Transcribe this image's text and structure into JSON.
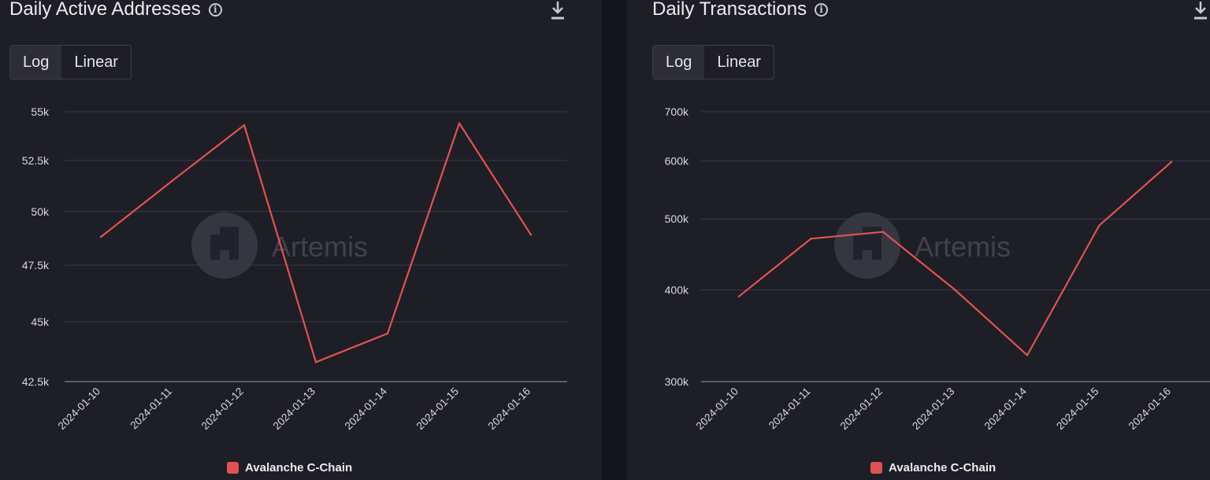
{
  "colors": {
    "series": "#e05252",
    "grid": "#3a3a48",
    "axis": "#5a5a68",
    "tick": "#d8d8de",
    "watermark": "#4a4a55"
  },
  "watermark": "Artemis",
  "panels": [
    {
      "title": "Daily Active Addresses",
      "toggle": {
        "log": "Log",
        "linear": "Linear",
        "selected": "Log"
      },
      "legend": "Avalanche C-Chain"
    },
    {
      "title": "Daily Transactions",
      "toggle": {
        "log": "Log",
        "linear": "Linear",
        "selected": "Log"
      },
      "legend": "Avalanche C-Chain"
    }
  ],
  "chart_data": [
    {
      "type": "line",
      "title": "Daily Active Addresses",
      "scale": "log",
      "categories": [
        "2024-01-10",
        "2024-01-11",
        "2024-01-12",
        "2024-01-13",
        "2024-01-14",
        "2024-01-15",
        "2024-01-16"
      ],
      "series": [
        {
          "name": "Avalanche C-Chain",
          "values": [
            48800,
            51500,
            54300,
            43300,
            44500,
            54400,
            48900
          ]
        }
      ],
      "ylim": [
        42500,
        55000
      ],
      "yticks": [
        42500,
        45000,
        47500,
        50000,
        52500,
        55000
      ],
      "ytick_labels": [
        "42.5k",
        "45k",
        "47.5k",
        "50k",
        "52.5k",
        "55k"
      ]
    },
    {
      "type": "line",
      "title": "Daily Transactions",
      "scale": "log",
      "categories": [
        "2024-01-10",
        "2024-01-11",
        "2024-01-12",
        "2024-01-13",
        "2024-01-14",
        "2024-01-15",
        "2024-01-16"
      ],
      "series": [
        {
          "name": "Avalanche C-Chain",
          "values": [
            392000,
            470000,
            480000,
            400000,
            326000,
            490000,
            598000
          ]
        }
      ],
      "ylim": [
        300000,
        700000
      ],
      "yticks": [
        300000,
        400000,
        500000,
        600000,
        700000
      ],
      "ytick_labels": [
        "300k",
        "400k",
        "500k",
        "600k",
        "700k"
      ]
    }
  ]
}
